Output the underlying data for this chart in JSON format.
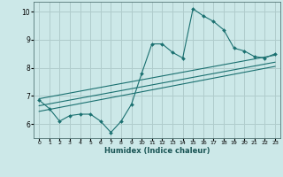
{
  "xlabel": "Humidex (Indice chaleur)",
  "ylabel": "",
  "xlim": [
    -0.5,
    23.5
  ],
  "ylim": [
    5.5,
    10.35
  ],
  "yticks": [
    6,
    7,
    8,
    9,
    10
  ],
  "xticks": [
    0,
    1,
    2,
    3,
    4,
    5,
    6,
    7,
    8,
    9,
    10,
    11,
    12,
    13,
    14,
    15,
    16,
    17,
    18,
    19,
    20,
    21,
    22,
    23
  ],
  "bg_color": "#cce8e8",
  "grid_color": "#b0cccc",
  "line_color": "#1a7070",
  "marker_color": "#1a7070",
  "line1_x": [
    0,
    1,
    2,
    3,
    4,
    5,
    6,
    7,
    8,
    9,
    10,
    11,
    12,
    13,
    14,
    15,
    16,
    17,
    18,
    19,
    20,
    21,
    22,
    23
  ],
  "line1_y": [
    6.85,
    6.55,
    6.1,
    6.3,
    6.35,
    6.35,
    6.1,
    5.7,
    6.1,
    6.7,
    7.8,
    8.85,
    8.85,
    8.55,
    8.35,
    10.1,
    9.85,
    9.65,
    9.35,
    8.7,
    8.6,
    8.4,
    8.35,
    8.5
  ],
  "line2_x": [
    0,
    23
  ],
  "line2_y": [
    6.65,
    8.2
  ],
  "line3_x": [
    0,
    23
  ],
  "line3_y": [
    6.9,
    8.45
  ],
  "line4_x": [
    0,
    23
  ],
  "line4_y": [
    6.45,
    8.05
  ]
}
